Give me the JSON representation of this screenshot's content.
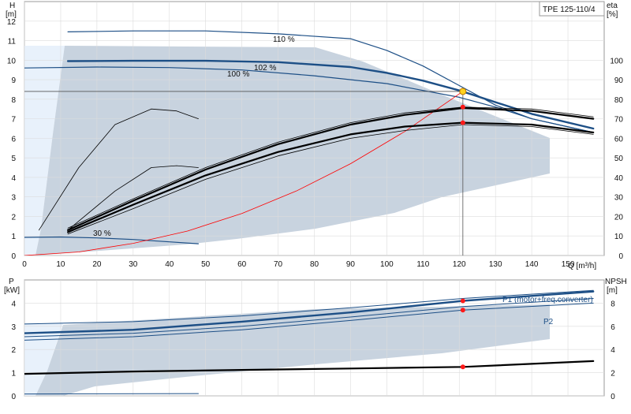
{
  "chart_data": [
    {
      "type": "line",
      "title": "TPE 125-110/4",
      "xlabel": "Q [m³/h]",
      "ylabel_left": "H",
      "ylabel_left_unit": "[m]",
      "ylabel_right": "eta",
      "ylabel_right_unit": "[%]",
      "xlim": [
        0,
        160
      ],
      "ylim_left": [
        0,
        13
      ],
      "ylim_right": [
        0,
        130
      ],
      "x_ticks": [
        "0",
        "10",
        "20",
        "30",
        "40",
        "50",
        "60",
        "70",
        "80",
        "90",
        "100",
        "110",
        "120",
        "130",
        "140",
        "150"
      ],
      "y_ticks_left": [
        "0",
        "1",
        "2",
        "3",
        "4",
        "5",
        "6",
        "7",
        "8",
        "9",
        "10",
        "11",
        "12"
      ],
      "y_ticks_right": [
        "0",
        "10",
        "20",
        "30",
        "40",
        "50",
        "60",
        "70",
        "80",
        "90",
        "100"
      ],
      "grid": true,
      "operating_point": {
        "x": 121,
        "h": 8.4
      },
      "duty_points": [
        {
          "x": 121,
          "y": 7.6
        },
        {
          "x": 121,
          "y": 6.8
        }
      ],
      "annotations": [
        "110 %",
        "102 %",
        "100 %",
        "30 %"
      ],
      "series": [
        {
          "name": "110 %",
          "axis": "left",
          "color": "#1d4f86",
          "width": 1.2,
          "x": [
            12,
            30,
            50,
            70,
            90,
            100,
            110,
            120,
            130,
            140,
            157
          ],
          "y": [
            11.45,
            11.5,
            11.5,
            11.35,
            11.1,
            10.5,
            9.7,
            8.7,
            7.7,
            7.0,
            6.3
          ]
        },
        {
          "name": "102 %",
          "axis": "left",
          "color": "#1d4f86",
          "width": 2.4,
          "x": [
            12,
            30,
            50,
            70,
            90,
            100,
            110,
            120,
            130,
            140,
            157
          ],
          "y": [
            9.95,
            9.97,
            9.97,
            9.9,
            9.65,
            9.35,
            8.95,
            8.45,
            7.85,
            7.25,
            6.5
          ]
        },
        {
          "name": "100 %",
          "axis": "left",
          "color": "#1d4f86",
          "width": 1.2,
          "x": [
            0,
            20,
            40,
            60,
            80,
            100,
            110,
            120,
            130,
            140,
            157
          ],
          "y": [
            9.6,
            9.65,
            9.62,
            9.5,
            9.2,
            8.8,
            8.45,
            8.1,
            7.6,
            7.0,
            6.3
          ]
        },
        {
          "name": "30 %",
          "axis": "left",
          "color": "#1d4f86",
          "width": 1.2,
          "x": [
            0,
            10,
            20,
            30,
            40,
            48
          ],
          "y": [
            0.93,
            0.95,
            0.9,
            0.82,
            0.7,
            0.6
          ]
        },
        {
          "name": "",
          "axis": "left",
          "color": "#ff0000",
          "width": 0.8,
          "x": [
            0,
            15,
            30,
            45,
            60,
            75,
            90,
            105,
            121
          ],
          "y": [
            0.0,
            0.18,
            0.62,
            1.25,
            2.15,
            3.3,
            4.7,
            6.35,
            8.4
          ]
        },
        {
          "name": "",
          "axis": "right",
          "color": "#000000",
          "width": 2.2,
          "x": [
            12,
            30,
            50,
            70,
            90,
            105,
            121,
            140,
            157
          ],
          "y": [
            12,
            26,
            41,
            53,
            62,
            66,
            68,
            67,
            63
          ]
        },
        {
          "name": "",
          "axis": "right",
          "color": "#000000",
          "width": 2.2,
          "x": [
            12,
            30,
            50,
            70,
            90,
            105,
            121,
            140,
            157
          ],
          "y": [
            13,
            28,
            44,
            57,
            67,
            72,
            75.5,
            74,
            70
          ]
        },
        {
          "name": "",
          "axis": "right",
          "color": "#000000",
          "width": 0.8,
          "x": [
            12,
            30,
            50,
            70,
            90,
            105,
            121,
            140,
            157
          ],
          "y": [
            11,
            24,
            39,
            51,
            60,
            64,
            67,
            66,
            62
          ]
        },
        {
          "name": "",
          "axis": "right",
          "color": "#000000",
          "width": 0.8,
          "x": [
            12,
            30,
            50,
            70,
            90,
            105,
            121,
            140,
            157
          ],
          "y": [
            14,
            29,
            45,
            58,
            68,
            73,
            76,
            75,
            71
          ]
        },
        {
          "name": "",
          "axis": "right",
          "color": "#000000",
          "width": 0.8,
          "x": [
            4,
            15,
            25,
            35,
            42,
            48
          ],
          "y": [
            13,
            45,
            67,
            75,
            74,
            70
          ]
        },
        {
          "name": "",
          "axis": "right",
          "color": "#000000",
          "width": 0.8,
          "x": [
            12,
            25,
            35,
            42,
            48
          ],
          "y": [
            13,
            33,
            45,
            46,
            45
          ]
        }
      ]
    },
    {
      "type": "line",
      "xlabel": "",
      "ylabel_left": "P",
      "ylabel_left_unit": "[kW]",
      "ylabel_right": "NPSH",
      "ylabel_right_unit": "[m]",
      "xlim": [
        0,
        160
      ],
      "ylim_left": [
        0,
        5
      ],
      "ylim_right": [
        0,
        10
      ],
      "y_ticks_left": [
        "0",
        "1",
        "2",
        "3",
        "4"
      ],
      "y_ticks_right": [
        "0",
        "2",
        "4",
        "6",
        "8"
      ],
      "grid": true,
      "duty_points": [
        {
          "x": 121,
          "y": 4.1
        },
        {
          "x": 121,
          "y": 3.7
        },
        {
          "x": 121,
          "y": 1.25
        }
      ],
      "series": [
        {
          "name": "P1 (motor+freq.converter)",
          "axis": "left",
          "color": "#1d4f86",
          "width": 2.4,
          "x": [
            0,
            30,
            60,
            90,
            121,
            157
          ],
          "y": [
            2.7,
            2.85,
            3.2,
            3.6,
            4.1,
            4.5
          ]
        },
        {
          "name": "P2",
          "axis": "left",
          "color": "#1d4f86",
          "width": 1.0,
          "x": [
            0,
            30,
            60,
            90,
            121,
            157
          ],
          "y": [
            2.4,
            2.55,
            2.85,
            3.25,
            3.7,
            4.0
          ]
        },
        {
          "name": "",
          "axis": "left",
          "color": "#1d4f86",
          "width": 1.0,
          "x": [
            0,
            30,
            60,
            90,
            121,
            157
          ],
          "y": [
            3.1,
            3.2,
            3.45,
            3.8,
            4.2,
            4.55
          ]
        },
        {
          "name": "",
          "axis": "left",
          "color": "#1d4f86",
          "width": 1.0,
          "x": [
            0,
            30,
            60,
            90,
            121,
            157
          ],
          "y": [
            2.55,
            2.7,
            3.0,
            3.4,
            3.85,
            4.2
          ]
        },
        {
          "name": "",
          "axis": "left",
          "color": "#1d4f86",
          "width": 1.0,
          "x": [
            0,
            48
          ],
          "y": [
            0.08,
            0.1
          ]
        },
        {
          "name": "",
          "axis": "left",
          "color": "#000000",
          "width": 2.2,
          "x": [
            0,
            30,
            60,
            90,
            121,
            157
          ],
          "y": [
            0.95,
            1.05,
            1.12,
            1.18,
            1.25,
            1.5
          ]
        }
      ]
    }
  ]
}
